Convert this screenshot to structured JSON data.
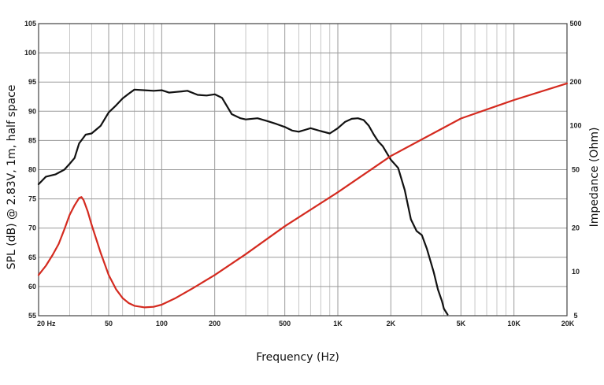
{
  "chart_data": {
    "type": "line",
    "xlabel": "Frequency (Hz)",
    "ylabel_left": "SPL (dB) @ 2.83V, 1m, half space",
    "ylabel_right": "Impedance (Ohm)",
    "x_scale": "log",
    "xlim": [
      20,
      20000
    ],
    "ylim_left": [
      55,
      105
    ],
    "ylim_right": [
      5,
      500
    ],
    "y_right_scale": "log",
    "grid": true,
    "x_ticks": [
      {
        "value": 20,
        "label": "20 Hz"
      },
      {
        "value": 50,
        "label": "50"
      },
      {
        "value": 100,
        "label": "100"
      },
      {
        "value": 200,
        "label": "200"
      },
      {
        "value": 500,
        "label": "500"
      },
      {
        "value": 1000,
        "label": "1K"
      },
      {
        "value": 2000,
        "label": "2K"
      },
      {
        "value": 5000,
        "label": "5K"
      },
      {
        "value": 10000,
        "label": "10K"
      },
      {
        "value": 20000,
        "label": "20K"
      }
    ],
    "y_left_ticks": [
      {
        "value": 55,
        "label": "55"
      },
      {
        "value": 60,
        "label": "60"
      },
      {
        "value": 65,
        "label": "65"
      },
      {
        "value": 70,
        "label": "70"
      },
      {
        "value": 75,
        "label": "75"
      },
      {
        "value": 80,
        "label": "80"
      },
      {
        "value": 85,
        "label": "85"
      },
      {
        "value": 90,
        "label": "90"
      },
      {
        "value": 95,
        "label": "95"
      },
      {
        "value": 100,
        "label": "100"
      },
      {
        "value": 105,
        "label": "105"
      }
    ],
    "y_right_ticks": [
      {
        "value": 5,
        "label": "5"
      },
      {
        "value": 10,
        "label": "10"
      },
      {
        "value": 20,
        "label": "20"
      },
      {
        "value": 50,
        "label": "50"
      },
      {
        "value": 100,
        "label": "100"
      },
      {
        "value": 200,
        "label": "200"
      },
      {
        "value": 500,
        "label": "500"
      }
    ],
    "series": [
      {
        "color": "#111111",
        "axis": "left",
        "x": [
          20,
          22,
          25,
          28,
          30,
          32,
          34,
          37,
          40,
          45,
          50,
          55,
          60,
          65,
          70,
          80,
          90,
          100,
          110,
          120,
          130,
          140,
          160,
          180,
          200,
          220,
          250,
          280,
          300,
          350,
          400,
          450,
          500,
          550,
          600,
          650,
          700,
          800,
          900,
          1000,
          1100,
          1200,
          1300,
          1400,
          1500,
          1600,
          1700,
          1800,
          2000,
          2200,
          2400,
          2600,
          2800,
          3000,
          3200,
          3500,
          3700,
          3900,
          4000,
          4200
        ],
        "values": [
          77.5,
          78.8,
          79.2,
          80.0,
          81.0,
          82.0,
          84.5,
          86.0,
          86.2,
          87.5,
          89.8,
          91.0,
          92.2,
          93.0,
          93.7,
          93.6,
          93.5,
          93.6,
          93.2,
          93.3,
          93.4,
          93.5,
          92.8,
          92.7,
          92.9,
          92.3,
          89.5,
          88.8,
          88.6,
          88.8,
          88.3,
          87.8,
          87.3,
          86.7,
          86.5,
          86.8,
          87.1,
          86.6,
          86.2,
          87.1,
          88.2,
          88.7,
          88.8,
          88.5,
          87.5,
          86.0,
          84.8,
          84.0,
          81.7,
          80.3,
          76.5,
          71.5,
          69.5,
          68.8,
          66.5,
          62.5,
          59.5,
          57.5,
          56.2,
          55.2
        ]
      },
      {
        "color": "#d42a1f",
        "axis": "right",
        "x": [
          20,
          22,
          24,
          26,
          28,
          30,
          32,
          34,
          35,
          36,
          38,
          40,
          45,
          50,
          55,
          60,
          65,
          70,
          80,
          90,
          100,
          120,
          150,
          200,
          300,
          500,
          1000,
          2000,
          5000,
          10000,
          20000
        ],
        "values": [
          9.5,
          11.0,
          13.0,
          15.5,
          19.5,
          24.5,
          28.5,
          32.0,
          32.5,
          31.0,
          26.0,
          21.0,
          13.5,
          9.5,
          7.6,
          6.6,
          6.1,
          5.85,
          5.7,
          5.75,
          5.95,
          6.6,
          7.7,
          9.5,
          13.2,
          20.5,
          35.0,
          62.0,
          112.0,
          150.0,
          195.0
        ]
      }
    ]
  }
}
